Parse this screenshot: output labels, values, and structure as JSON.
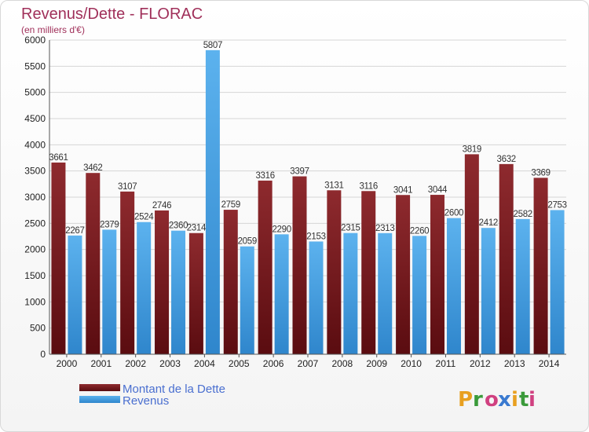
{
  "chart_data": {
    "type": "bar",
    "title": "Revenus/Dette - FLORAC",
    "subtitle": "(en milliers d'€)",
    "categories": [
      "2000",
      "2001",
      "2002",
      "2003",
      "2004",
      "2005",
      "2006",
      "2007",
      "2008",
      "2009",
      "2010",
      "2011",
      "2012",
      "2013",
      "2014"
    ],
    "series": [
      {
        "name": "Montant de la Dette",
        "color": "#7a1a1e",
        "values": [
          3661,
          3462,
          3107,
          2746,
          2314,
          2759,
          3316,
          3397,
          3131,
          3116,
          3041,
          3044,
          3819,
          3632,
          3369
        ]
      },
      {
        "name": "Revenus",
        "color": "#4aa2e3",
        "values": [
          2267,
          2379,
          2524,
          2360,
          5807,
          2059,
          2290,
          2153,
          2315,
          2313,
          2260,
          2600,
          2412,
          2582,
          2753
        ]
      }
    ],
    "ylim": [
      0,
      6000
    ],
    "yticks": [
      0,
      500,
      1000,
      1500,
      2000,
      2500,
      3000,
      3500,
      4000,
      4500,
      5000,
      5500,
      6000
    ],
    "grid": true,
    "legend_position": "bottom-left"
  },
  "brand": {
    "letters": [
      "P",
      "r",
      "o",
      "x",
      "i",
      "t",
      "i"
    ],
    "colors": [
      "#e8a020",
      "#3a9a3a",
      "#d04080",
      "#3a7ad0",
      "#e8a020",
      "#3a9a3a",
      "#d04080"
    ]
  }
}
